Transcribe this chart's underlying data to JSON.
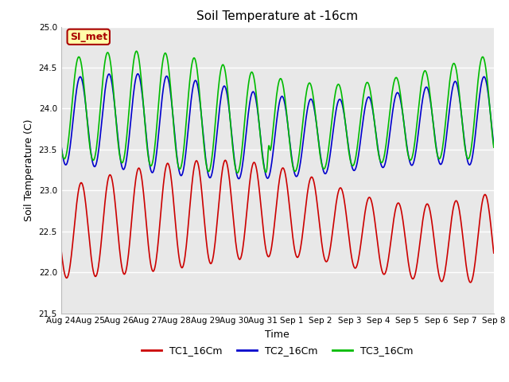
{
  "title": "Soil Temperature at -16cm",
  "xlabel": "Time",
  "ylabel": "Soil Temperature (C)",
  "ylim": [
    21.5,
    25.0
  ],
  "x_tick_labels": [
    "Aug 24",
    "Aug 25",
    "Aug 26",
    "Aug 27",
    "Aug 28",
    "Aug 29",
    "Aug 30",
    "Aug 31",
    "Sep 1",
    "Sep 2",
    "Sep 3",
    "Sep 4",
    "Sep 5",
    "Sep 6",
    "Sep 7",
    "Sep 8"
  ],
  "background_color": "#ffffff",
  "plot_bg_color": "#e8e8e8",
  "grid_color": "#ffffff",
  "annotation_text": "SI_met",
  "annotation_bg": "#ffffaa",
  "annotation_border": "#aa0000",
  "annotation_text_color": "#aa0000",
  "tc1_color": "#cc0000",
  "tc2_color": "#0000cc",
  "tc3_color": "#00bb00",
  "linewidth": 1.2,
  "legend_labels": [
    "TC1_16Cm",
    "TC2_16Cm",
    "TC3_16Cm"
  ]
}
